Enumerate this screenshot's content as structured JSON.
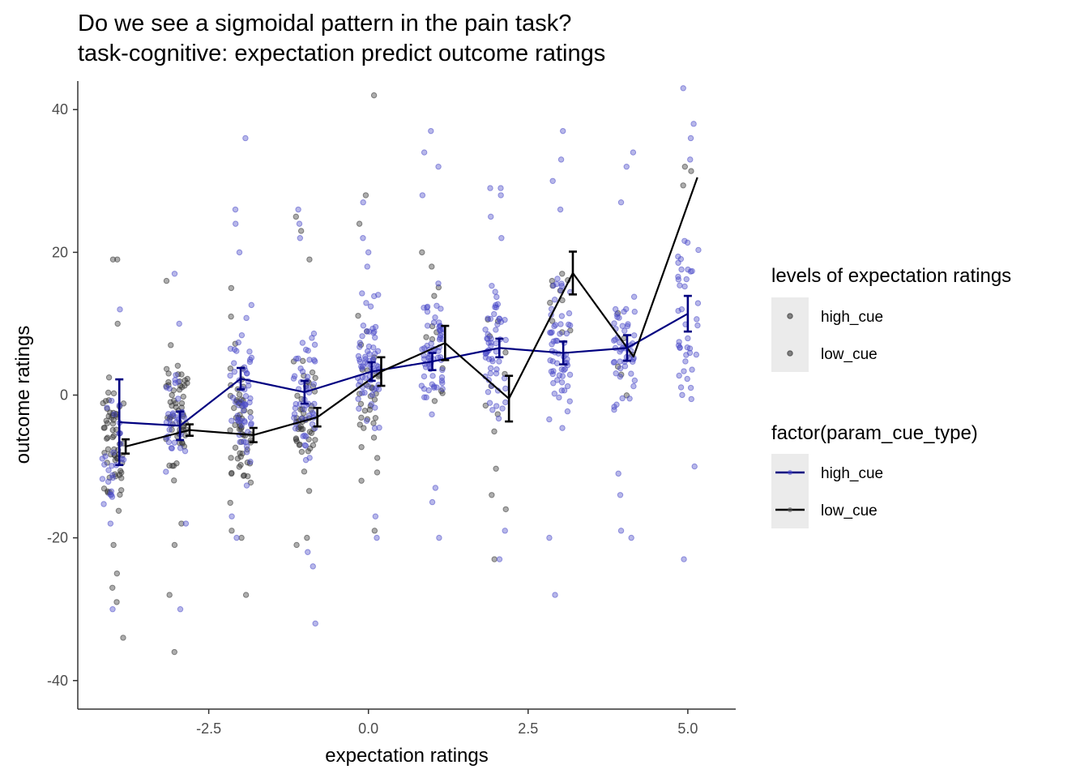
{
  "chart_data": {
    "type": "scatter",
    "title": "Do we see a sigmoidal pattern in the pain task?",
    "subtitle": "task-cognitive: expectation predict outcome ratings",
    "xlabel": "expectation ratings",
    "ylabel": "outcome ratings",
    "xlim": [
      -4.55,
      5.75
    ],
    "ylim": [
      -44,
      44
    ],
    "x_ticks": [
      -2.5,
      0.0,
      2.5,
      5.0
    ],
    "x_tick_labels": [
      "-2.5",
      "0.0",
      "2.5",
      "5.0"
    ],
    "y_ticks": [
      -40,
      -20,
      0,
      20,
      40
    ],
    "y_tick_labels": [
      "-40",
      "-20",
      "0",
      "20",
      "40"
    ],
    "grid": false,
    "legend_position": "right",
    "point_legend": {
      "title": "levels of expectation ratings",
      "entries": [
        {
          "label": "high_cue",
          "color": "#000000"
        },
        {
          "label": "low_cue",
          "color": "#000000"
        }
      ]
    },
    "line_legend": {
      "title": "factor(param_cue_type)",
      "entries": [
        {
          "label": "high_cue",
          "color": "#000080"
        },
        {
          "label": "low_cue",
          "color": "#000000"
        }
      ]
    },
    "series": [
      {
        "name": "high_cue",
        "color": "#000080",
        "point_color": "#4b4bc8",
        "x": [
          -3.9,
          -2.95,
          -2.0,
          -1.0,
          0.05,
          1.0,
          2.05,
          3.05,
          4.05,
          5.0
        ],
        "y": [
          -3.8,
          -4.3,
          2.3,
          0.4,
          3.3,
          4.7,
          6.6,
          5.9,
          6.6,
          11.4
        ],
        "err": [
          6.0,
          2.0,
          1.5,
          1.6,
          1.3,
          1.2,
          1.3,
          1.6,
          1.8,
          2.5
        ]
      },
      {
        "name": "low_cue",
        "color": "#000000",
        "point_color": "#333333",
        "x": [
          -3.8,
          -2.8,
          -1.8,
          -0.8,
          0.2,
          1.2,
          2.2,
          3.2,
          4.15,
          5.15
        ],
        "y": [
          -7.2,
          -4.9,
          -5.6,
          -3.1,
          3.3,
          7.3,
          -0.5,
          17.1,
          5.4,
          30.5
        ],
        "err": [
          1.0,
          0.8,
          1.0,
          1.3,
          2.0,
          2.4,
          3.2,
          3.0,
          0.0,
          0.0
        ]
      }
    ],
    "jitter_clusters": [
      {
        "x": -4.0,
        "high_n": 25,
        "high_center": -8,
        "high_spread": 6,
        "low_n": 60,
        "low_center": -7,
        "low_spread": 7,
        "high_extremes": [
          -30,
          -18,
          -14,
          12
        ],
        "low_extremes": [
          -34,
          -29,
          -27,
          -25,
          -21,
          19,
          19,
          10
        ]
      },
      {
        "x": -3.0,
        "high_n": 30,
        "high_center": -3,
        "high_spread": 6,
        "low_n": 55,
        "low_center": -3,
        "low_spread": 6,
        "high_extremes": [
          -30,
          -18,
          10,
          17
        ],
        "low_extremes": [
          -36,
          -28,
          -21,
          -18,
          16,
          7
        ]
      },
      {
        "x": -2.0,
        "high_n": 55,
        "high_center": 1,
        "high_spread": 8,
        "low_n": 55,
        "low_center": -5,
        "low_spread": 7,
        "high_extremes": [
          -20,
          -17,
          20,
          24,
          26,
          36
        ],
        "low_extremes": [
          -28,
          -20,
          -19,
          11,
          15
        ]
      },
      {
        "x": -1.0,
        "high_n": 50,
        "high_center": 0,
        "high_spread": 8,
        "low_n": 45,
        "low_center": -3,
        "low_spread": 7,
        "high_extremes": [
          -32,
          -24,
          -22,
          22,
          24,
          26
        ],
        "low_extremes": [
          -21,
          -20,
          19,
          23,
          25
        ]
      },
      {
        "x": 0.0,
        "high_n": 65,
        "high_center": 4,
        "high_spread": 8,
        "low_n": 30,
        "low_center": 0,
        "low_spread": 8,
        "high_extremes": [
          -20,
          -17,
          18,
          20,
          22,
          27
        ],
        "low_extremes": [
          -19,
          -12,
          24,
          28,
          42
        ]
      },
      {
        "x": 1.0,
        "high_n": 65,
        "high_center": 5,
        "high_spread": 8,
        "low_n": 10,
        "low_center": 4,
        "low_spread": 8,
        "high_extremes": [
          -20,
          -15,
          -13,
          28,
          32,
          34,
          37
        ],
        "low_extremes": [
          18,
          20
        ]
      },
      {
        "x": 2.0,
        "high_n": 55,
        "high_center": 6,
        "high_spread": 8,
        "low_n": 10,
        "low_center": 2,
        "low_spread": 10,
        "high_extremes": [
          -23,
          -19,
          22,
          25,
          28,
          29,
          29
        ],
        "low_extremes": [
          -23,
          -16,
          -14
        ]
      },
      {
        "x": 3.0,
        "high_n": 60,
        "high_center": 6,
        "high_spread": 8,
        "low_n": 8,
        "low_center": 12,
        "low_spread": 6,
        "high_extremes": [
          -28,
          -20,
          26,
          30,
          33,
          37
        ],
        "low_extremes": [
          16,
          17
        ]
      },
      {
        "x": 4.0,
        "high_n": 50,
        "high_center": 6,
        "high_spread": 8,
        "low_n": 6,
        "low_center": 5,
        "low_spread": 5,
        "high_extremes": [
          -20,
          -19,
          -14,
          -11,
          27,
          32,
          34
        ],
        "low_extremes": []
      },
      {
        "x": 5.0,
        "high_n": 40,
        "high_center": 11,
        "high_spread": 10,
        "low_n": 2,
        "low_center": 30,
        "low_spread": 2,
        "high_extremes": [
          -23,
          -10,
          33,
          36,
          38,
          43
        ],
        "low_extremes": [
          32
        ]
      }
    ]
  }
}
